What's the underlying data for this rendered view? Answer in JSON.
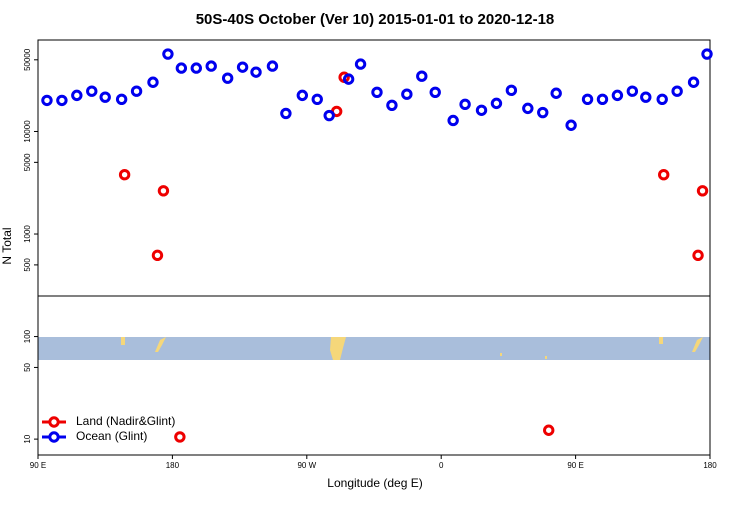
{
  "chart_data": {
    "type": "scatter",
    "title": "50S-40S October (Ver 10)   2015-01-01 to 2020-12-18",
    "x_label": "Longitude (deg E)",
    "y_label": "N Total",
    "log_y": true,
    "legend": "bottom-left",
    "xlim": [
      90,
      540
    ],
    "xticks": [
      {
        "value": 90,
        "label": "90 E"
      },
      180,
      {
        "value": 270,
        "label": "90 W"
      },
      {
        "value": 360,
        "label": "0"
      },
      {
        "value": 450,
        "label": "90 E"
      },
      {
        "value": 540,
        "label": "180"
      }
    ],
    "ylim": [
      7,
      78000
    ],
    "yticks": [
      10,
      50,
      100,
      500,
      1000,
      5000,
      10000,
      50000
    ],
    "series": [
      {
        "name": "Land (Nadir&Glint)",
        "color": "#ee0000",
        "x": [
          148,
          170,
          174,
          290,
          295,
          185,
          432,
          509,
          532,
          535
        ],
        "values": [
          3790,
          620,
          2640,
          15700,
          33800,
          10.5,
          12.2,
          3790,
          620,
          2640
        ]
      },
      {
        "name": "Ocean (Glint)",
        "color": "#0000ee",
        "x": [
          96,
          106,
          116,
          126,
          135,
          146,
          156,
          167,
          177,
          186,
          196,
          206,
          217,
          227,
          236,
          247,
          256,
          267,
          277,
          285,
          298,
          306,
          317,
          327,
          337,
          347,
          356,
          368,
          376,
          387,
          397,
          407,
          418,
          428,
          437,
          447,
          458,
          468,
          478,
          488,
          497,
          508,
          518,
          529,
          538
        ],
        "values": [
          20100,
          20100,
          22500,
          24700,
          21600,
          20600,
          24700,
          30200,
          56900,
          41500,
          41500,
          43400,
          33100,
          42400,
          37900,
          43400,
          15000,
          22500,
          20600,
          14300,
          32400,
          45400,
          24100,
          18000,
          23100,
          34600,
          24100,
          12800,
          18400,
          16100,
          18800,
          25200,
          16800,
          15300,
          23600,
          11500,
          20600,
          20600,
          22500,
          24700,
          21600,
          20600,
          24700,
          30200,
          56900
        ]
      }
    ]
  }
}
